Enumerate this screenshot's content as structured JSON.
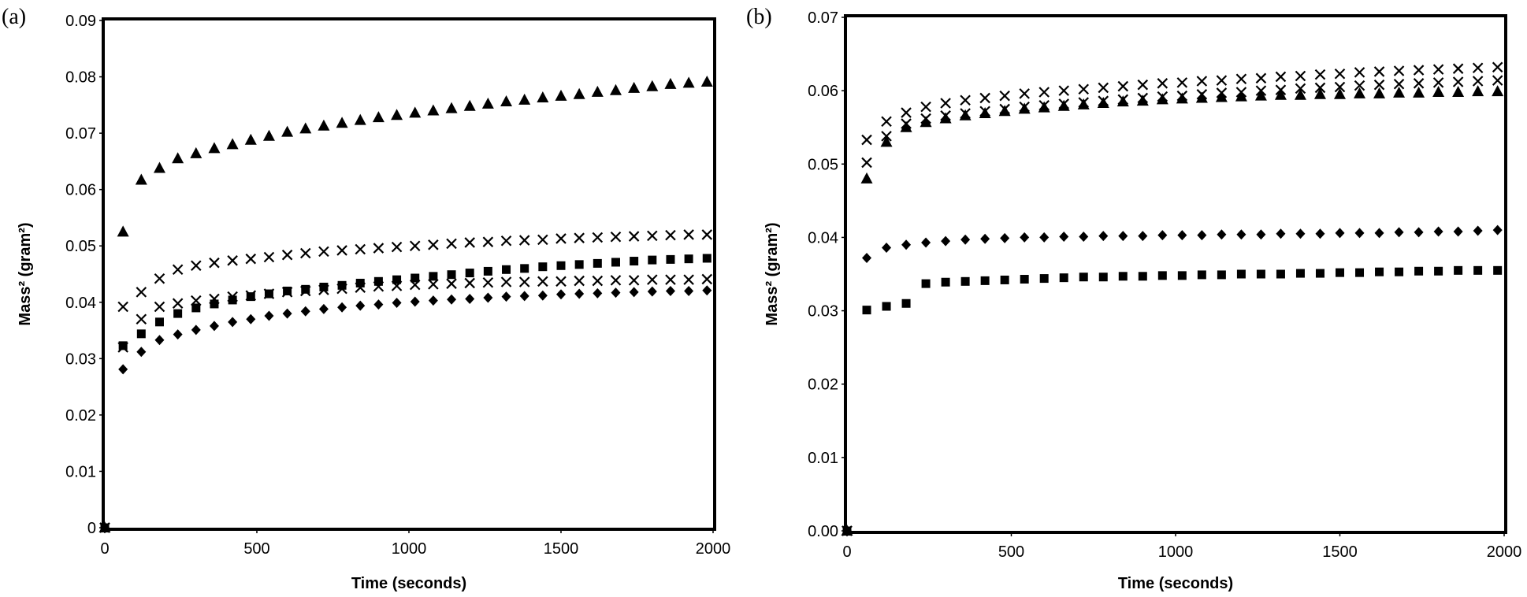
{
  "chart_data": [
    {
      "type": "scatter",
      "panel_label": "(a)",
      "xlabel": "Time (seconds)",
      "ylabel": "Mass² (gram²)",
      "xlim": [
        0,
        2000
      ],
      "ylim": [
        0,
        0.09
      ],
      "x_ticks": [
        "0",
        "500",
        "1000",
        "1500",
        "2000"
      ],
      "y_ticks": [
        "0",
        "0.01",
        "0.02",
        "0.03",
        "0.04",
        "0.05",
        "0.06",
        "0.07",
        "0.08",
        "0.09"
      ],
      "grid": false,
      "x": [
        0,
        60,
        120,
        180,
        240,
        300,
        360,
        420,
        480,
        540,
        600,
        660,
        720,
        780,
        840,
        900,
        960,
        1020,
        1080,
        1140,
        1200,
        1260,
        1320,
        1380,
        1440,
        1500,
        1560,
        1620,
        1680,
        1740,
        1800,
        1860,
        1920,
        1980
      ],
      "series": [
        {
          "name": "triangle",
          "marker": "triangle",
          "values": [
            0,
            0.0525,
            0.0617,
            0.0638,
            0.0655,
            0.0664,
            0.0673,
            0.068,
            0.0688,
            0.0695,
            0.0702,
            0.0708,
            0.0713,
            0.0718,
            0.0723,
            0.0728,
            0.0732,
            0.0736,
            0.074,
            0.0744,
            0.0748,
            0.0752,
            0.0756,
            0.0759,
            0.0763,
            0.0766,
            0.0769,
            0.0773,
            0.0776,
            0.078,
            0.0783,
            0.0787,
            0.0789,
            0.0791
          ]
        },
        {
          "name": "cross upper",
          "marker": "x",
          "values": [
            0,
            0.0392,
            0.0418,
            0.0442,
            0.0458,
            0.0465,
            0.047,
            0.0474,
            0.0477,
            0.048,
            0.0484,
            0.0487,
            0.049,
            0.0492,
            0.0494,
            0.0496,
            0.0498,
            0.05,
            0.0502,
            0.0504,
            0.0506,
            0.0507,
            0.0509,
            0.051,
            0.0511,
            0.0513,
            0.0514,
            0.0515,
            0.0516,
            0.0517,
            0.0518,
            0.0519,
            0.052,
            0.052
          ]
        },
        {
          "name": "square",
          "marker": "square",
          "values": [
            0,
            0.0323,
            0.0344,
            0.0365,
            0.038,
            0.039,
            0.0397,
            0.0404,
            0.041,
            0.0415,
            0.042,
            0.0423,
            0.0427,
            0.043,
            0.0434,
            0.0437,
            0.044,
            0.0443,
            0.0446,
            0.0449,
            0.0452,
            0.0455,
            0.0458,
            0.046,
            0.0463,
            0.0465,
            0.0467,
            0.0469,
            0.0471,
            0.0473,
            0.0475,
            0.0476,
            0.0477,
            0.0478
          ]
        },
        {
          "name": "cross lower",
          "marker": "x",
          "values": [
            0,
            0.032,
            0.037,
            0.0392,
            0.0398,
            0.0403,
            0.0406,
            0.041,
            0.0412,
            0.0415,
            0.0418,
            0.042,
            0.0422,
            0.0424,
            0.0426,
            0.0428,
            0.0429,
            0.0431,
            0.0432,
            0.0433,
            0.0434,
            0.0435,
            0.0436,
            0.0436,
            0.0437,
            0.0437,
            0.0438,
            0.0438,
            0.0439,
            0.0439,
            0.044,
            0.044,
            0.044,
            0.0441
          ]
        },
        {
          "name": "diamond",
          "marker": "diamond",
          "values": [
            0,
            0.0281,
            0.0312,
            0.0333,
            0.0343,
            0.0351,
            0.0358,
            0.0365,
            0.037,
            0.0376,
            0.038,
            0.0384,
            0.0388,
            0.0391,
            0.0394,
            0.0396,
            0.0399,
            0.0401,
            0.0403,
            0.0405,
            0.0406,
            0.0408,
            0.041,
            0.0411,
            0.0412,
            0.0414,
            0.0415,
            0.0416,
            0.0417,
            0.0418,
            0.0419,
            0.042,
            0.042,
            0.0421
          ]
        }
      ]
    },
    {
      "type": "scatter",
      "panel_label": "(b)",
      "xlabel": "Time (seconds)",
      "ylabel": "Mass² (gram²)",
      "xlim": [
        0,
        2000
      ],
      "ylim": [
        0,
        0.07
      ],
      "x_ticks": [
        "0",
        "500",
        "1000",
        "1500",
        "2000"
      ],
      "y_ticks": [
        "0.00",
        "0.01",
        "0.02",
        "0.03",
        "0.04",
        "0.05",
        "0.06",
        "0.07"
      ],
      "grid": false,
      "x": [
        0,
        60,
        120,
        180,
        240,
        300,
        360,
        420,
        480,
        540,
        600,
        660,
        720,
        780,
        840,
        900,
        960,
        1020,
        1080,
        1140,
        1200,
        1260,
        1320,
        1380,
        1440,
        1500,
        1560,
        1620,
        1680,
        1740,
        1800,
        1860,
        1920,
        1980
      ],
      "series": [
        {
          "name": "cross upper",
          "marker": "x",
          "values": [
            0,
            0.0533,
            0.0558,
            0.057,
            0.0578,
            0.0583,
            0.0587,
            0.059,
            0.0593,
            0.0596,
            0.0598,
            0.06,
            0.0602,
            0.0604,
            0.0606,
            0.0608,
            0.061,
            0.0611,
            0.0613,
            0.0614,
            0.0616,
            0.0617,
            0.0619,
            0.062,
            0.0622,
            0.0623,
            0.0625,
            0.0626,
            0.0627,
            0.0628,
            0.0629,
            0.063,
            0.0631,
            0.0632
          ]
        },
        {
          "name": "cross lower",
          "marker": "x",
          "values": [
            0,
            0.0502,
            0.0538,
            0.0555,
            0.0562,
            0.0566,
            0.0569,
            0.0572,
            0.0575,
            0.0578,
            0.058,
            0.0582,
            0.0584,
            0.0586,
            0.0588,
            0.059,
            0.0592,
            0.0593,
            0.0595,
            0.0597,
            0.0598,
            0.06,
            0.0601,
            0.0603,
            0.0604,
            0.0605,
            0.0607,
            0.0608,
            0.0609,
            0.061,
            0.0611,
            0.0612,
            0.0613,
            0.0614
          ]
        },
        {
          "name": "triangle",
          "marker": "triangle",
          "values": [
            0,
            0.048,
            0.053,
            0.055,
            0.0557,
            0.0562,
            0.0566,
            0.0569,
            0.0572,
            0.0575,
            0.0577,
            0.0579,
            0.0581,
            0.0583,
            0.0585,
            0.0586,
            0.0588,
            0.0589,
            0.059,
            0.0591,
            0.0592,
            0.0593,
            0.0594,
            0.0594,
            0.0595,
            0.0595,
            0.0596,
            0.0596,
            0.0597,
            0.0597,
            0.0598,
            0.0598,
            0.0599,
            0.0599
          ]
        },
        {
          "name": "diamond",
          "marker": "diamond",
          "values": [
            0,
            0.0372,
            0.0386,
            0.039,
            0.0393,
            0.0395,
            0.0397,
            0.0398,
            0.0399,
            0.04,
            0.04,
            0.0401,
            0.0401,
            0.0402,
            0.0402,
            0.0402,
            0.0403,
            0.0403,
            0.0403,
            0.0404,
            0.0404,
            0.0404,
            0.0405,
            0.0405,
            0.0405,
            0.0406,
            0.0406,
            0.0406,
            0.0407,
            0.0407,
            0.0408,
            0.0408,
            0.0409,
            0.041
          ]
        },
        {
          "name": "square",
          "marker": "square",
          "values": [
            0,
            0.0301,
            0.0306,
            0.031,
            0.0337,
            0.0339,
            0.034,
            0.0341,
            0.0342,
            0.0343,
            0.0344,
            0.0345,
            0.0346,
            0.0346,
            0.0347,
            0.0347,
            0.0348,
            0.0348,
            0.0349,
            0.0349,
            0.035,
            0.035,
            0.035,
            0.0351,
            0.0351,
            0.0352,
            0.0352,
            0.0353,
            0.0353,
            0.0354,
            0.0354,
            0.0355,
            0.0355,
            0.0355
          ]
        }
      ]
    }
  ]
}
